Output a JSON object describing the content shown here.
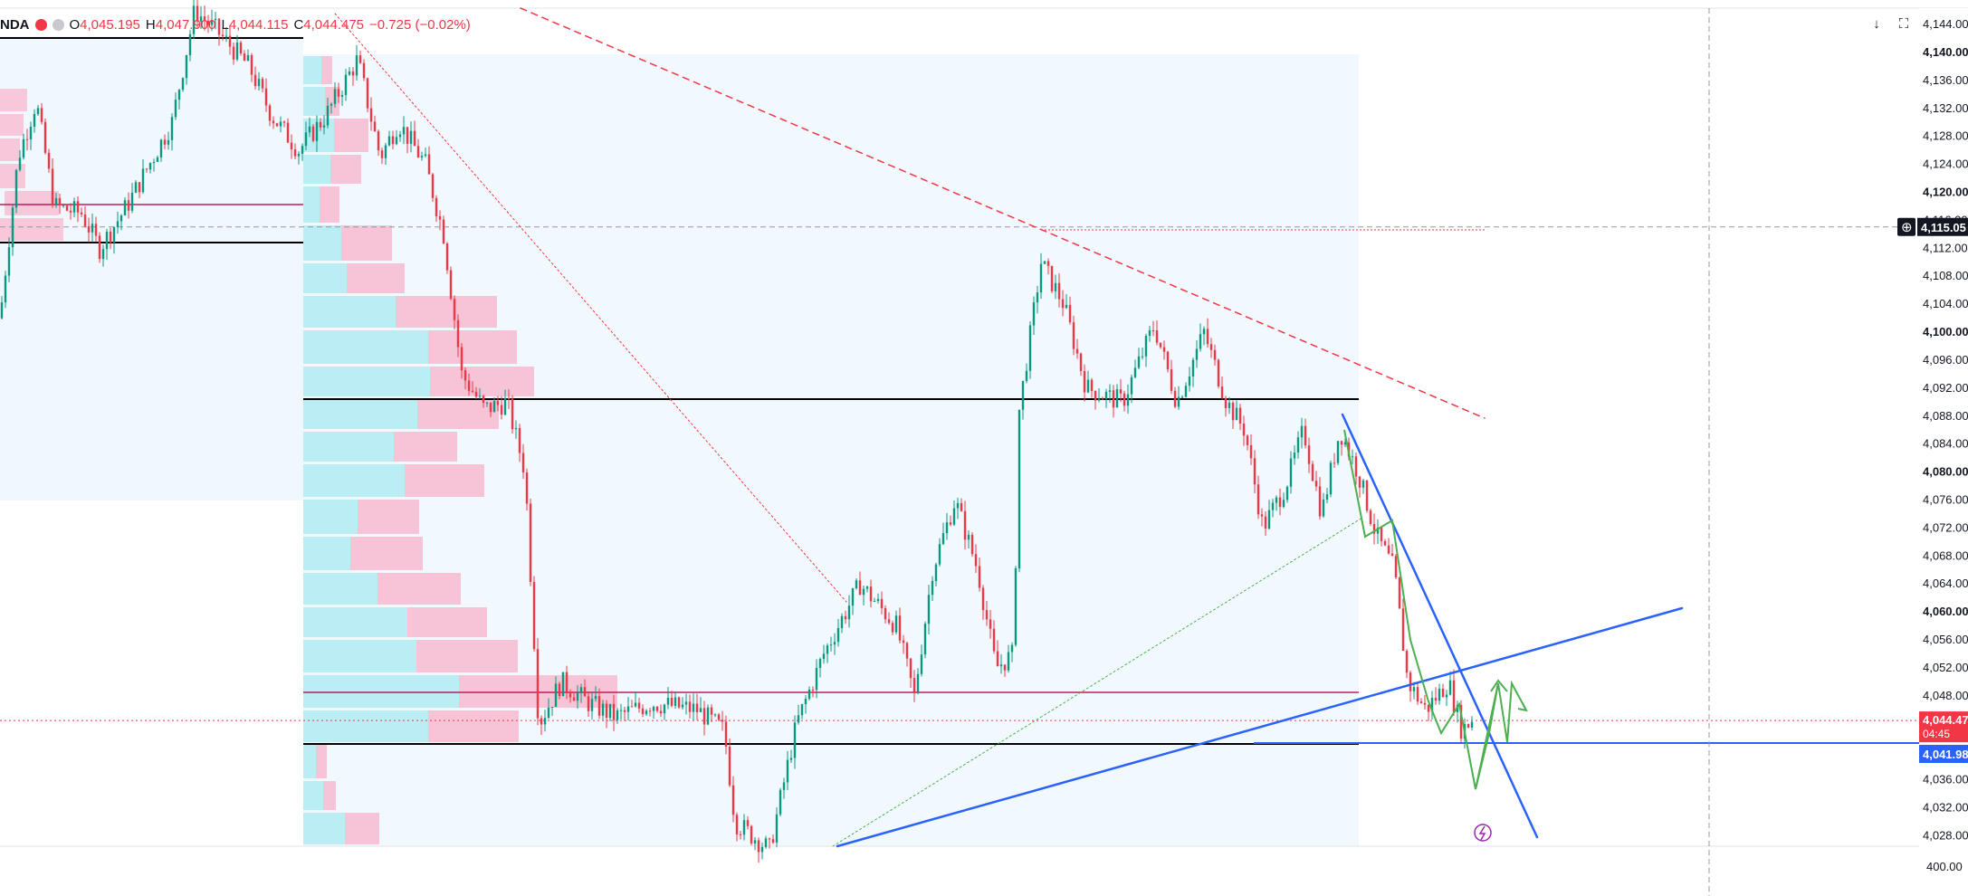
{
  "legend": {
    "symbol": "NDA",
    "open_label": "O",
    "open": "4,045.195",
    "high_label": "H",
    "high": "4,047.900",
    "low_label": "L",
    "low": "4,044.115",
    "close_label": "C",
    "close": "4,044.475",
    "change": "−0.725 (−0.02%)"
  },
  "toolbar": {
    "download_icon": "↓",
    "fullscreen_icon": "⛶"
  },
  "price_axis": {
    "ticks": [
      {
        "v": 4144,
        "label": "4,144.00",
        "bold": false
      },
      {
        "v": 4140,
        "label": "4,140.00",
        "bold": true
      },
      {
        "v": 4136,
        "label": "4,136.00",
        "bold": false
      },
      {
        "v": 4132,
        "label": "4,132.00",
        "bold": false
      },
      {
        "v": 4128,
        "label": "4,128.00",
        "bold": false
      },
      {
        "v": 4124,
        "label": "4,124.00",
        "bold": false
      },
      {
        "v": 4120,
        "label": "4,120.00",
        "bold": true
      },
      {
        "v": 4116,
        "label": "4,116.00",
        "bold": false
      },
      {
        "v": 4112,
        "label": "4,112.00",
        "bold": false
      },
      {
        "v": 4108,
        "label": "4,108.00",
        "bold": false
      },
      {
        "v": 4104,
        "label": "4,104.00",
        "bold": false
      },
      {
        "v": 4100,
        "label": "4,100.00",
        "bold": true
      },
      {
        "v": 4096,
        "label": "4,096.00",
        "bold": false
      },
      {
        "v": 4092,
        "label": "4,092.00",
        "bold": false
      },
      {
        "v": 4088,
        "label": "4,088.00",
        "bold": false
      },
      {
        "v": 4084,
        "label": "4,084.00",
        "bold": false
      },
      {
        "v": 4080,
        "label": "4,080.00",
        "bold": true
      },
      {
        "v": 4076,
        "label": "4,076.00",
        "bold": false
      },
      {
        "v": 4072,
        "label": "4,072.00",
        "bold": false
      },
      {
        "v": 4068,
        "label": "4,068.00",
        "bold": false
      },
      {
        "v": 4064,
        "label": "4,064.00",
        "bold": false
      },
      {
        "v": 4060,
        "label": "4,060.00",
        "bold": true
      },
      {
        "v": 4056,
        "label": "4,056.00",
        "bold": false
      },
      {
        "v": 4052,
        "label": "4,052.00",
        "bold": false
      },
      {
        "v": 4048,
        "label": "4,048.00",
        "bold": false
      },
      {
        "v": 4036,
        "label": "4,036.00",
        "bold": false
      },
      {
        "v": 4032,
        "label": "4,032.00",
        "bold": false
      },
      {
        "v": 4028,
        "label": "4,028.00",
        "bold": false
      }
    ],
    "crosshair_price": "4,115.05",
    "current_price": "4,044.47",
    "countdown": "04:45",
    "line_price": "4,041.98",
    "volume_label": "400.00"
  },
  "colors": {
    "up": "#089981",
    "down": "#f23645",
    "blue": "#2962ff",
    "green": "#4caf50",
    "vp_up": "#b2ebf2",
    "vp_down": "#f8bbd0",
    "range_bg": "#e3f2fd"
  },
  "chart_data": {
    "type": "candlestick",
    "ylim": [
      4026.5,
      4147.5
    ],
    "levels": [
      4115.05,
      4091.4,
      4049.7,
      4041.98
    ]
  }
}
